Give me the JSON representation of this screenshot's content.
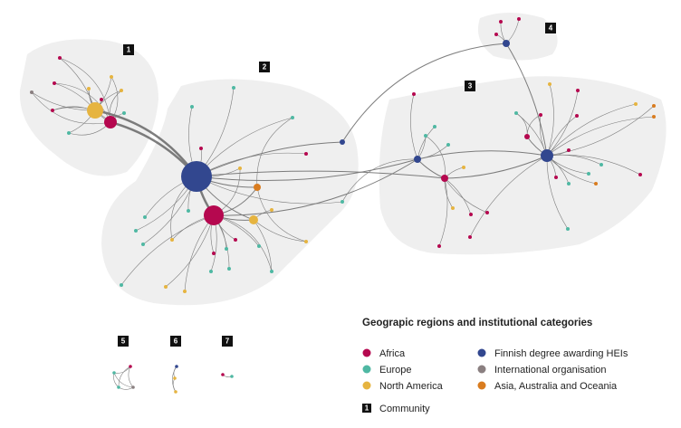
{
  "communities": [
    "1",
    "2",
    "3",
    "4",
    "5",
    "6",
    "7"
  ],
  "legend": {
    "title": "Geograpic regions and institutional categories",
    "items": [
      {
        "label": "Africa",
        "color": "#b5084f"
      },
      {
        "label": "Europe",
        "color": "#4fb8a3"
      },
      {
        "label": "North America",
        "color": "#e6b440"
      },
      {
        "label": "Finnish degree awarding HEIs",
        "color": "#32478f"
      },
      {
        "label": "International organisation",
        "color": "#8a7f80"
      },
      {
        "label": "Asia, Australia and Oceania",
        "color": "#d97c1f"
      }
    ],
    "community": "Community"
  }
}
